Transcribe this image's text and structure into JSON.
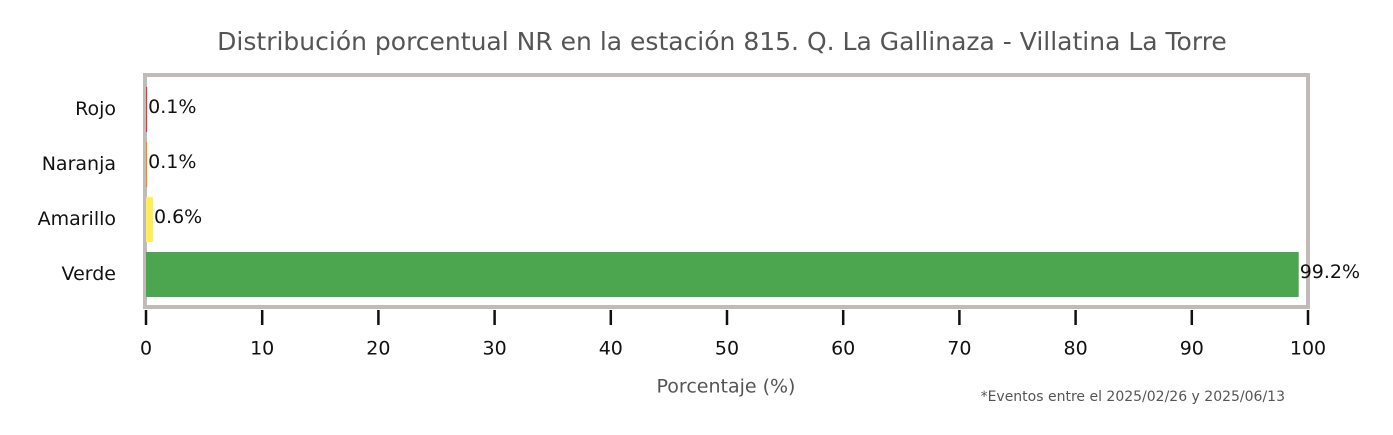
{
  "chart_data": {
    "type": "barh",
    "title": "Distribución porcentual NR en la estación 815. Q. La Gallinaza - Villatina La Torre",
    "categories": [
      "Rojo",
      "Naranja",
      "Amarillo",
      "Verde"
    ],
    "values": [
      0.1,
      0.1,
      0.6,
      99.2
    ],
    "value_labels": [
      "0.1%",
      "0.1%",
      "0.6%",
      "99.2%"
    ],
    "colors": [
      "#e53935",
      "#fb8c00",
      "#ffee58",
      "#4ba64f"
    ],
    "xlim": [
      0,
      100
    ],
    "xticks": [
      0,
      10,
      20,
      30,
      40,
      50,
      60,
      70,
      80,
      90,
      100
    ],
    "xlabel": "Porcentaje (%)",
    "note": "*Eventos entre el 2025/02/26 y 2025/06/13"
  }
}
